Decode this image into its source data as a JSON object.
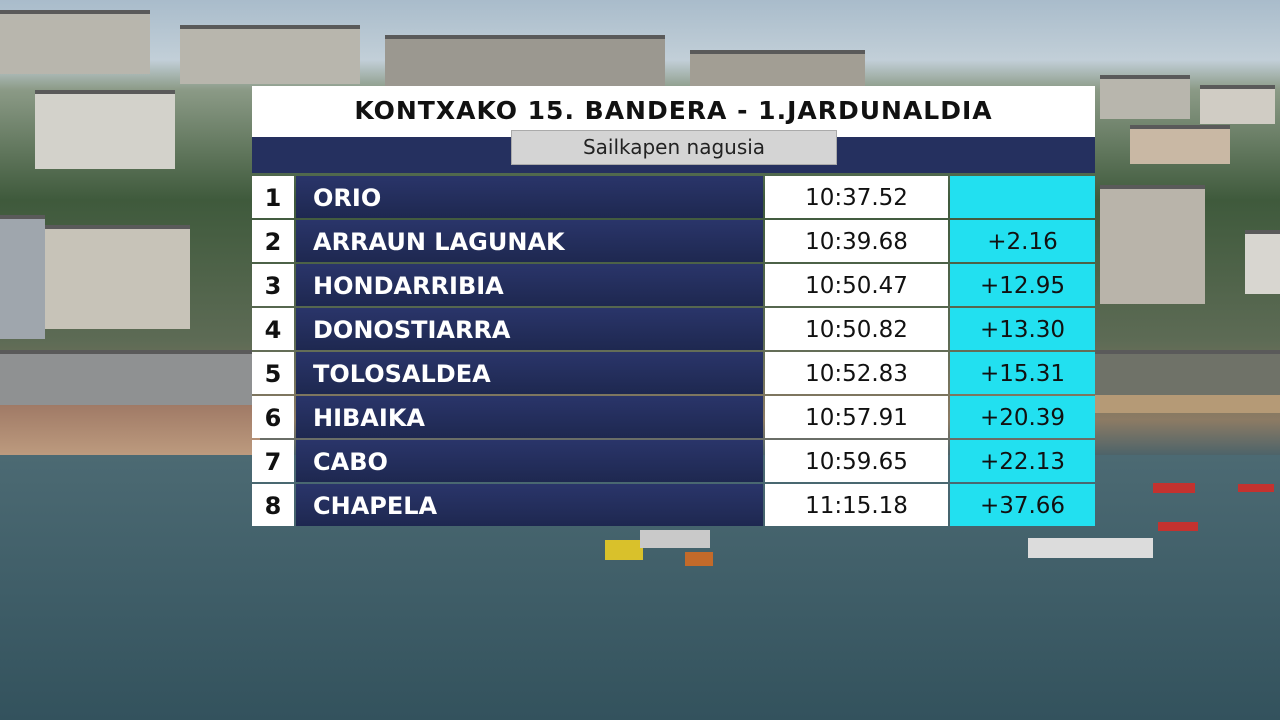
{
  "header": {
    "title": "KONTXAKO 15. BANDERA - 1.JARDUNALDIA",
    "subtitle": "Sailkapen nagusia"
  },
  "table": {
    "rows": [
      {
        "rank": 1,
        "team": "ORIO",
        "time": "10:37.52"
      },
      {
        "rank": 2,
        "team": "ARRAUN LAGUNAK",
        "time": "10:39.68",
        "gap": "+2.16"
      },
      {
        "rank": 3,
        "team": "HONDARRIBIA",
        "time": "10:50.47",
        "gap": "+12.95"
      },
      {
        "rank": 4,
        "team": "DONOSTIARRA",
        "time": "10:50.82",
        "gap": "+13.30"
      },
      {
        "rank": 5,
        "team": "TOLOSALDEA",
        "time": "10:52.83",
        "gap": "+15.31"
      },
      {
        "rank": 6,
        "team": "HIBAIKA",
        "time": "10:57.91",
        "gap": "+20.39"
      },
      {
        "rank": 7,
        "team": "CABO",
        "time": "10:59.65",
        "gap": "+22.13"
      },
      {
        "rank": 8,
        "team": "CHAPELA",
        "time": "11:15.18",
        "gap": "+37.66"
      }
    ]
  }
}
